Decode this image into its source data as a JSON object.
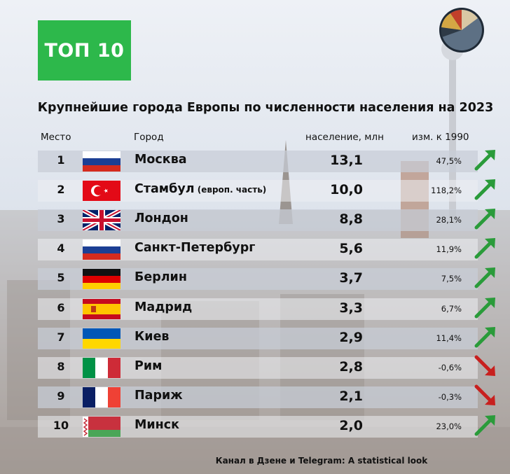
{
  "badge": "ТОП 10",
  "title": "Крупнейшие города Европы по численности населения на 2023",
  "headers": {
    "rank": "Место",
    "city": "Город",
    "population": "население, млн",
    "change": "изм. к 1990"
  },
  "footer": "Канал в Дзене и Telegram: A statistical look",
  "colors": {
    "badge": "#2db84b",
    "up": "#2a9b3a",
    "down": "#c8201e"
  },
  "chart_data": {
    "type": "table",
    "title": "Крупнейшие города Европы по численности населения на 2023",
    "columns": [
      "Место",
      "Город",
      "население, млн",
      "изм. к 1990"
    ],
    "rows": [
      {
        "rank": "1",
        "city": "Москва",
        "note": "",
        "flag": "russia-flag-icon",
        "population": "13,1",
        "change": "47,5%",
        "trend": "up"
      },
      {
        "rank": "2",
        "city": "Стамбул",
        "note": "(европ. часть)",
        "flag": "turkey-flag-icon",
        "population": "10,0",
        "change": "118,2%",
        "trend": "up"
      },
      {
        "rank": "3",
        "city": "Лондон",
        "note": "",
        "flag": "uk-flag-icon",
        "population": "8,8",
        "change": "28,1%",
        "trend": "up"
      },
      {
        "rank": "4",
        "city": "Санкт-Петербург",
        "note": "",
        "flag": "russia-flag-icon",
        "population": "5,6",
        "change": "11,9%",
        "trend": "up"
      },
      {
        "rank": "5",
        "city": "Берлин",
        "note": "",
        "flag": "germany-flag-icon",
        "population": "3,7",
        "change": "7,5%",
        "trend": "up"
      },
      {
        "rank": "6",
        "city": "Мадрид",
        "note": "",
        "flag": "spain-flag-icon",
        "population": "3,3",
        "change": "6,7%",
        "trend": "up"
      },
      {
        "rank": "7",
        "city": "Киев",
        "note": "",
        "flag": "ukraine-flag-icon",
        "population": "2,9",
        "change": "11,4%",
        "trend": "up"
      },
      {
        "rank": "8",
        "city": "Рим",
        "note": "",
        "flag": "italy-flag-icon",
        "population": "2,8",
        "change": "-0,6%",
        "trend": "down"
      },
      {
        "rank": "9",
        "city": "Париж",
        "note": "",
        "flag": "france-flag-icon",
        "population": "2,1",
        "change": "-0,3%",
        "trend": "down"
      },
      {
        "rank": "10",
        "city": "Минск",
        "note": "",
        "flag": "belarus-flag-icon",
        "population": "2,0",
        "change": "23,0%",
        "trend": "up"
      }
    ]
  }
}
